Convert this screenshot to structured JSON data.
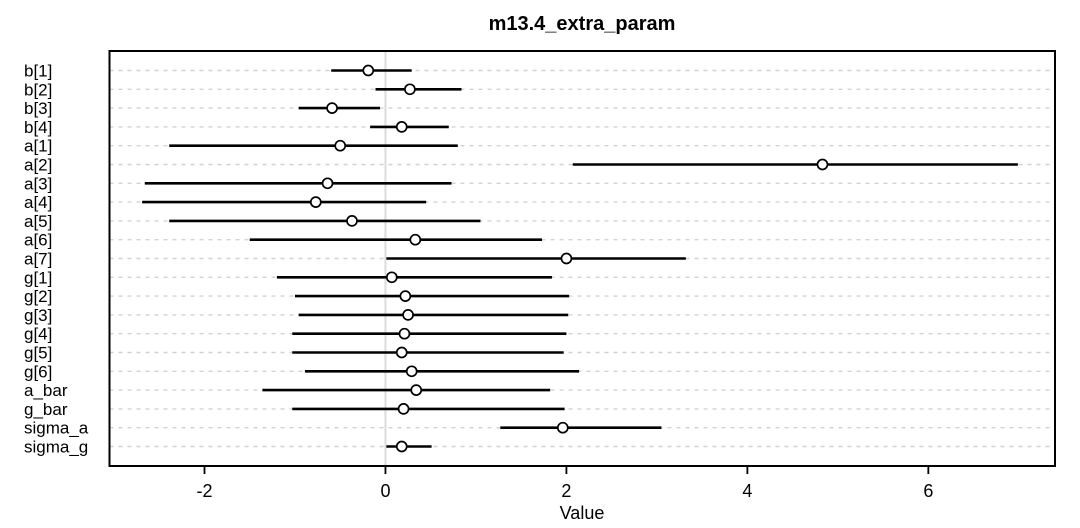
{
  "figure": {
    "title": "m13.4_extra_param",
    "xlabel": "Value"
  },
  "chart_data": {
    "type": "forest",
    "title": "m13.4_extra_param",
    "xlabel": "Value",
    "ylabel": "",
    "xlim": [
      -3.05,
      7.4
    ],
    "xticks": [
      -2,
      0,
      2,
      4,
      6
    ],
    "zero_line": 0,
    "grid": "dashed-horizontal",
    "legend": "none",
    "colors": {
      "interval": "#000000",
      "point_stroke": "#000000",
      "point_fill": "#ffffff",
      "grid": "#d2d2d2",
      "zero_line": "#dcdcdc",
      "frame": "#000000",
      "text": "#000000",
      "background": "#ffffff"
    },
    "params": [
      {
        "name": "b[1]",
        "mean": -0.19,
        "lo": -0.6,
        "hi": 0.29
      },
      {
        "name": "b[2]",
        "mean": 0.27,
        "lo": -0.11,
        "hi": 0.84
      },
      {
        "name": "b[3]",
        "mean": -0.59,
        "lo": -0.96,
        "hi": -0.06
      },
      {
        "name": "b[4]",
        "mean": 0.18,
        "lo": -0.17,
        "hi": 0.7
      },
      {
        "name": "a[1]",
        "mean": -0.5,
        "lo": -2.39,
        "hi": 0.8
      },
      {
        "name": "a[2]",
        "mean": 4.83,
        "lo": 2.07,
        "hi": 6.99
      },
      {
        "name": "a[3]",
        "mean": -0.64,
        "lo": -2.66,
        "hi": 0.73
      },
      {
        "name": "a[4]",
        "mean": -0.77,
        "lo": -2.69,
        "hi": 0.45
      },
      {
        "name": "a[5]",
        "mean": -0.37,
        "lo": -2.39,
        "hi": 1.05
      },
      {
        "name": "a[6]",
        "mean": 0.33,
        "lo": -1.5,
        "hi": 1.73
      },
      {
        "name": "a[7]",
        "mean": 2.0,
        "lo": 0.01,
        "hi": 3.32
      },
      {
        "name": "g[1]",
        "mean": 0.07,
        "lo": -1.2,
        "hi": 1.84
      },
      {
        "name": "g[2]",
        "mean": 0.22,
        "lo": -1.0,
        "hi": 2.03
      },
      {
        "name": "g[3]",
        "mean": 0.25,
        "lo": -0.96,
        "hi": 2.02
      },
      {
        "name": "g[4]",
        "mean": 0.21,
        "lo": -1.03,
        "hi": 2.0
      },
      {
        "name": "g[5]",
        "mean": 0.18,
        "lo": -1.03,
        "hi": 1.97
      },
      {
        "name": "g[6]",
        "mean": 0.29,
        "lo": -0.89,
        "hi": 2.14
      },
      {
        "name": "a_bar",
        "mean": 0.34,
        "lo": -1.36,
        "hi": 1.82
      },
      {
        "name": "g_bar",
        "mean": 0.2,
        "lo": -1.03,
        "hi": 1.98
      },
      {
        "name": "sigma_a",
        "mean": 1.96,
        "lo": 1.27,
        "hi": 3.05
      },
      {
        "name": "sigma_g",
        "mean": 0.18,
        "lo": 0.01,
        "hi": 0.51
      }
    ]
  }
}
